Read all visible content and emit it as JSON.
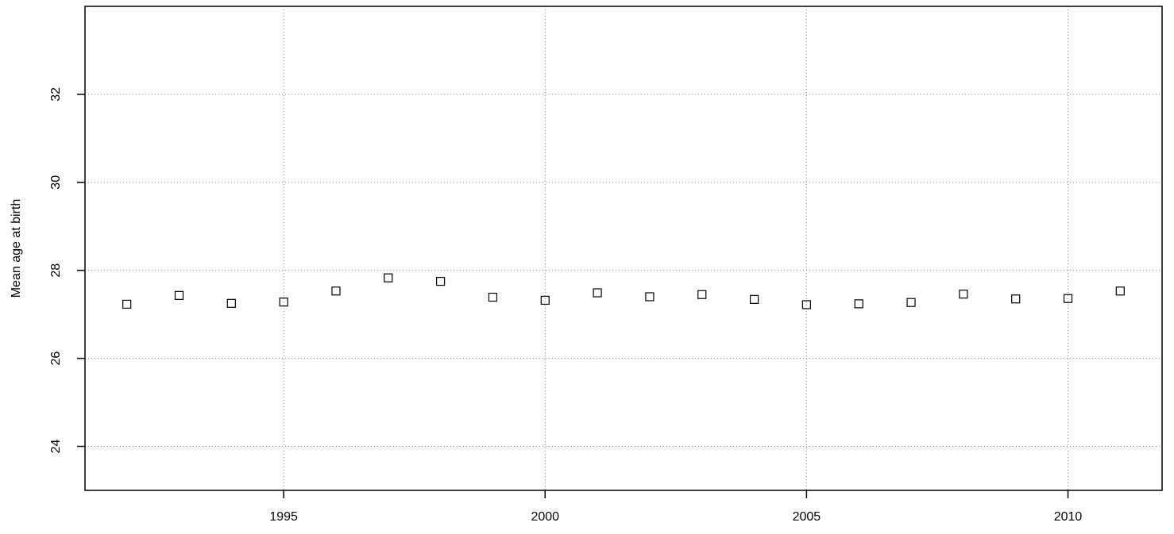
{
  "chart_data": {
    "type": "scatter",
    "title": "",
    "xlabel": "",
    "ylabel": "Mean age at birth",
    "xlim": [
      1991.2,
      2011.8
    ],
    "ylim": [
      23,
      34
    ],
    "x_ticks": [
      1995,
      2000,
      2005,
      2010
    ],
    "x_tick_labels": [
      "1995",
      "2000",
      "2005",
      "2010"
    ],
    "y_ticks": [
      24,
      26,
      28,
      30,
      32
    ],
    "y_tick_labels": [
      "24",
      "26",
      "28",
      "30",
      "32"
    ],
    "grid": true,
    "grid_style": "dotted",
    "marker": "open-square",
    "series": [
      {
        "x": [
          1992,
          1993,
          1994,
          1995,
          1996,
          1997,
          1998,
          1999,
          2000,
          2001,
          2002,
          2003,
          2004,
          2005,
          2006,
          2007,
          2008,
          2009,
          2010,
          2011
        ],
        "y": [
          27.23,
          27.43,
          27.25,
          27.28,
          27.53,
          27.83,
          27.75,
          27.39,
          27.32,
          27.49,
          27.4,
          27.45,
          27.34,
          27.22,
          27.24,
          27.27,
          27.46,
          27.35,
          27.36,
          27.53
        ]
      }
    ],
    "colors": {
      "marker": "#000000",
      "grid": "#808080",
      "frame": "#000000"
    }
  }
}
